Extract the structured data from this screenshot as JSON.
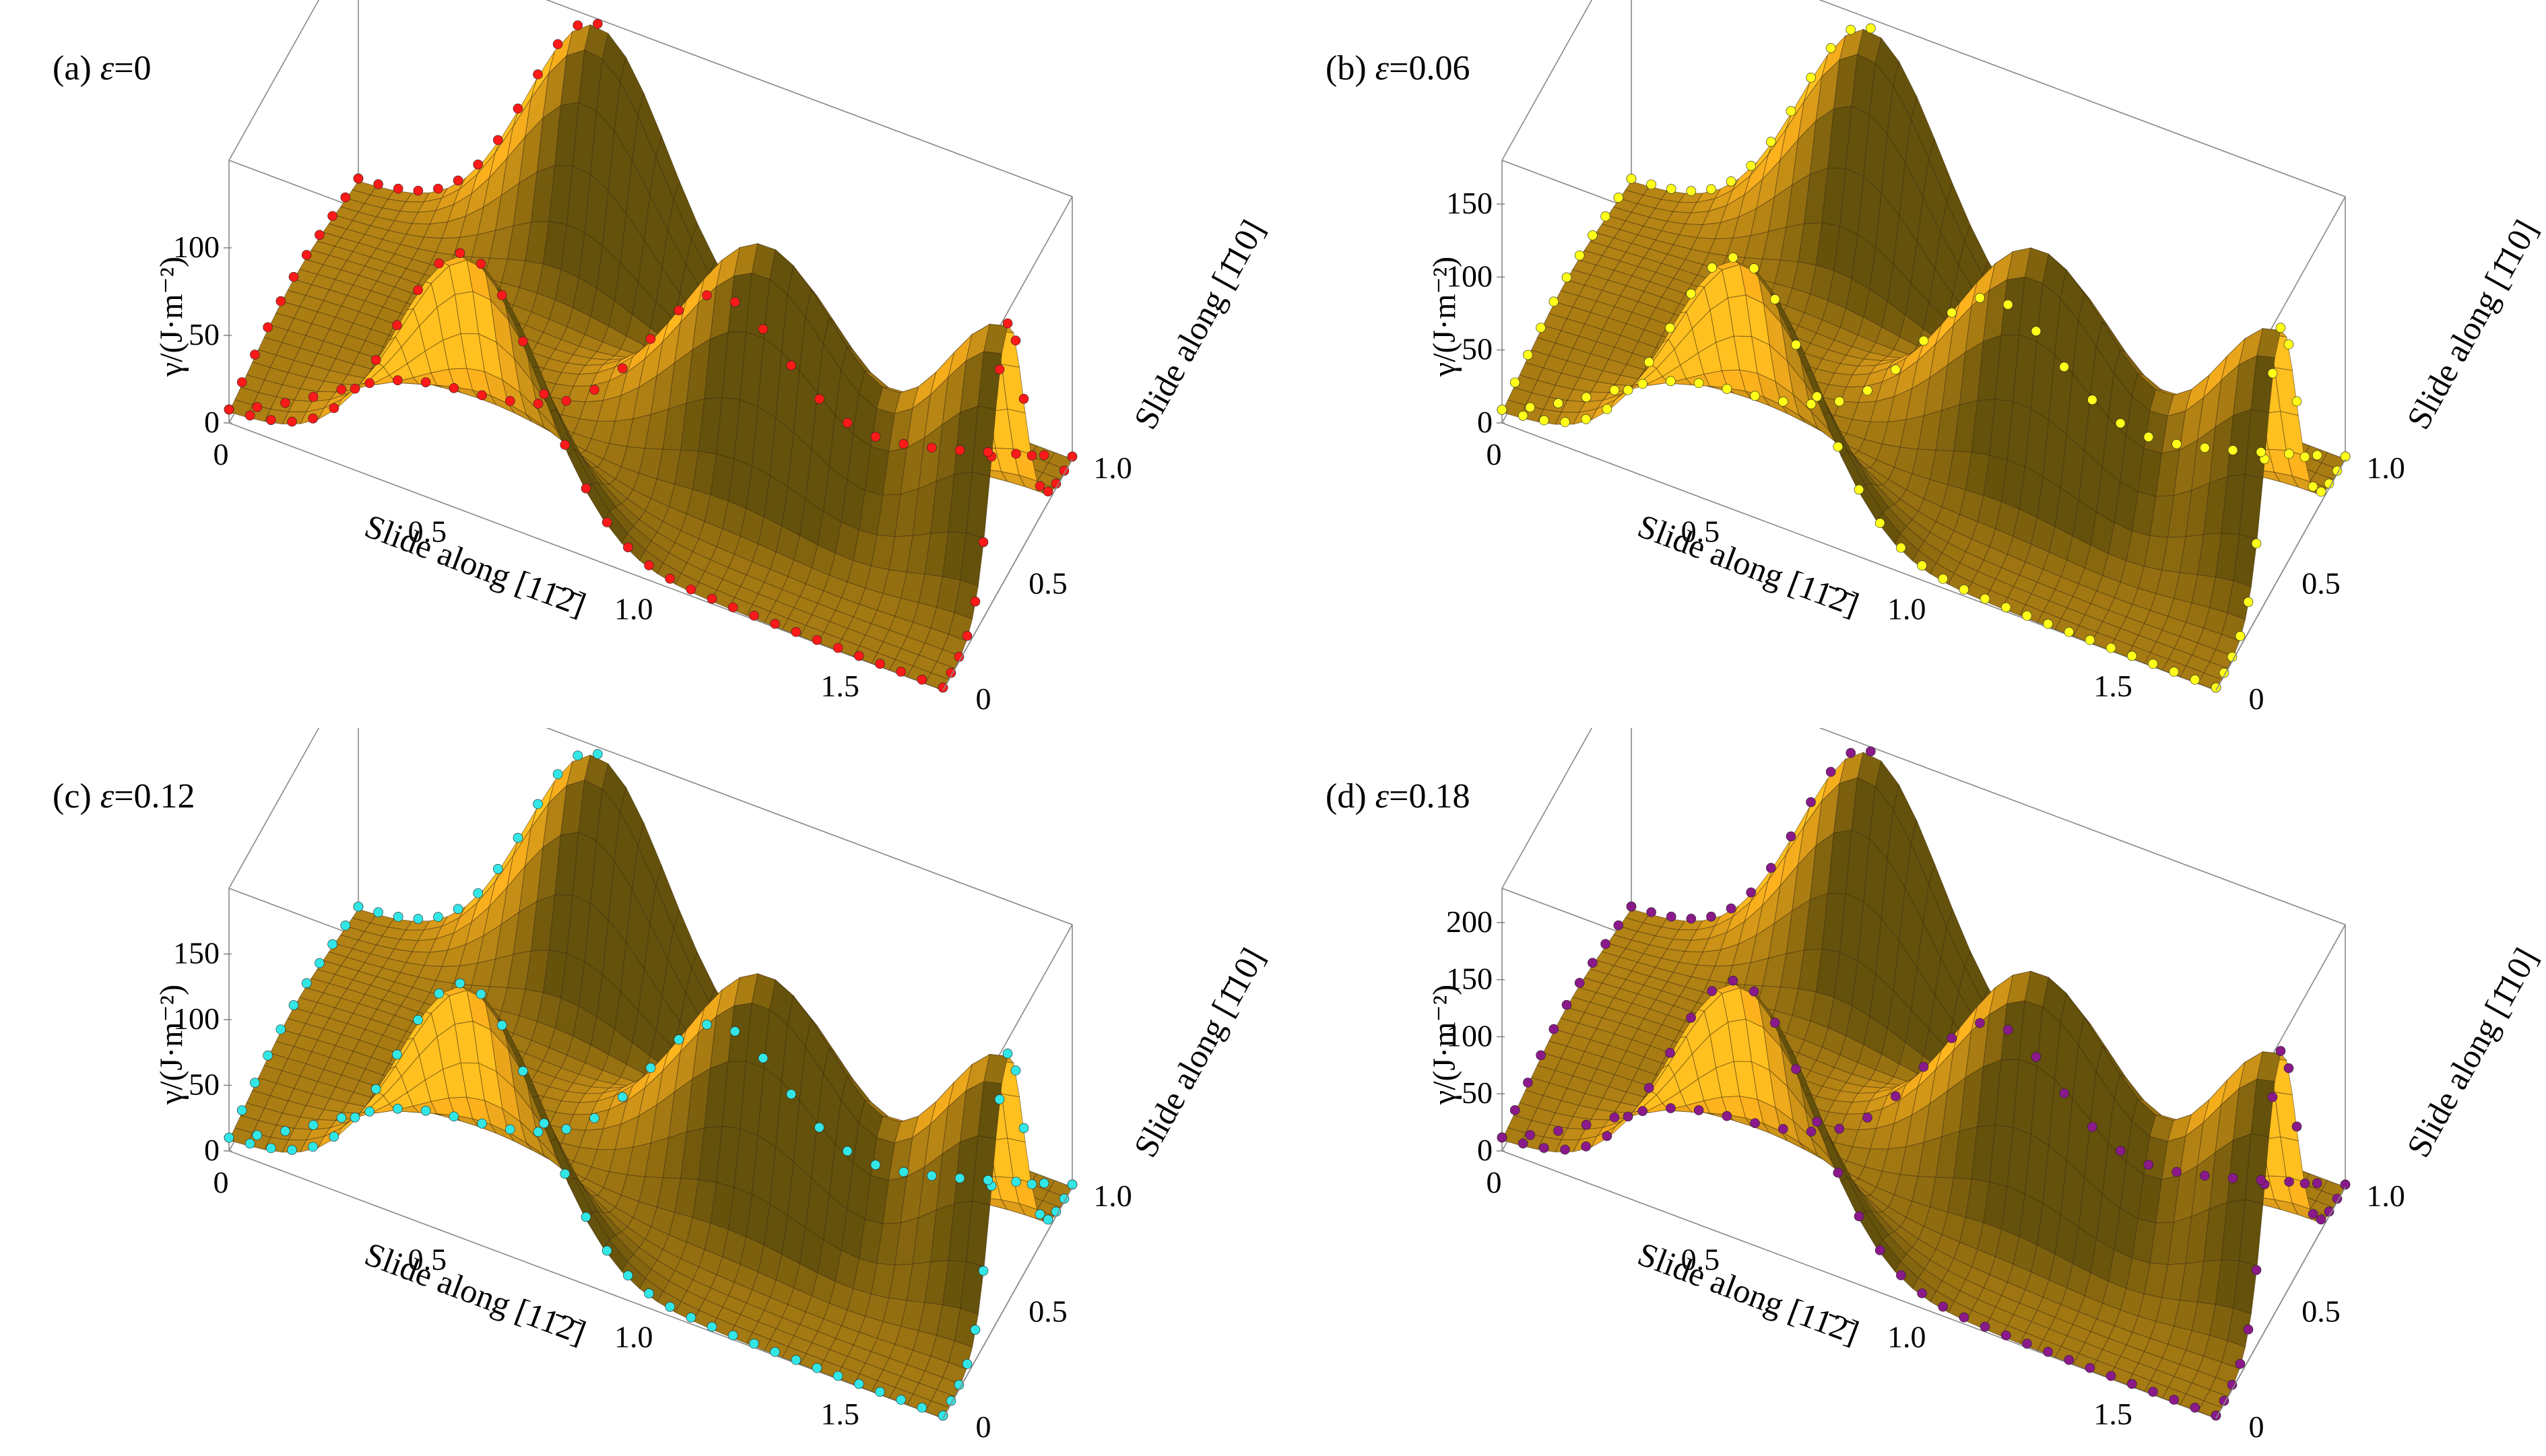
{
  "chart_data": [
    {
      "type": "surface3d",
      "panel": "(a)",
      "strain_symbol": "ε",
      "strain_value": "=0",
      "z_label": "γ/(J·m⁻²)",
      "x_label": "Slide along [11̄2̄]",
      "y_label": "Slide along [1̄10]",
      "x_ticks": [
        "0",
        "0.5",
        "1.0",
        "1.5"
      ],
      "y_ticks": [
        "0",
        "0.5",
        "1.0"
      ],
      "z_ticks": [
        "0",
        "50",
        "100"
      ],
      "xlim": [
        0,
        1.73
      ],
      "ylim": [
        0,
        1.0
      ],
      "zlim": [
        0,
        150
      ],
      "peak_value": 140,
      "marker_color": "#ff1a1a"
    },
    {
      "type": "surface3d",
      "panel": "(b)",
      "strain_symbol": "ε",
      "strain_value": "=0.06",
      "z_label": "γ/(J·m⁻²)",
      "x_label": "Slide along [11̄2̄]",
      "y_label": "Slide along [1̄10]",
      "x_ticks": [
        "0",
        "0.5",
        "1.0",
        "1.5"
      ],
      "y_ticks": [
        "0",
        "0.5",
        "1.0"
      ],
      "z_ticks": [
        "0",
        "50",
        "100",
        "150"
      ],
      "xlim": [
        0,
        1.73
      ],
      "ylim": [
        0,
        1.0
      ],
      "zlim": [
        0,
        180
      ],
      "peak_value": 165,
      "marker_color": "#ffff1a"
    },
    {
      "type": "surface3d",
      "panel": "(c)",
      "strain_symbol": "ε",
      "strain_value": "=0.12",
      "z_label": "γ/(J·m⁻²)",
      "x_label": "Slide along [11̄2̄]",
      "y_label": "Slide along [1̄10]",
      "x_ticks": [
        "0",
        "0.5",
        "1.0",
        "1.5"
      ],
      "y_ticks": [
        "0",
        "0.5",
        "1.0"
      ],
      "z_ticks": [
        "0",
        "50",
        "100",
        "150"
      ],
      "xlim": [
        0,
        1.73
      ],
      "ylim": [
        0,
        1.0
      ],
      "zlim": [
        0,
        200
      ],
      "peak_value": 185,
      "marker_color": "#33e6e6"
    },
    {
      "type": "surface3d",
      "panel": "(d)",
      "strain_symbol": "ε",
      "strain_value": "=0.18",
      "z_label": "γ/(J·m⁻²)",
      "x_label": "Slide along [11̄2̄]",
      "y_label": "Slide along [1̄10]",
      "x_ticks": [
        "0",
        "0.5",
        "1.0",
        "1.5"
      ],
      "y_ticks": [
        "0",
        "0.5",
        "1.0"
      ],
      "z_ticks": [
        "0",
        "50",
        "100",
        "150",
        "200"
      ],
      "xlim": [
        0,
        1.73
      ],
      "ylim": [
        0,
        1.0
      ],
      "zlim": [
        0,
        230
      ],
      "peak_value": 215,
      "marker_color": "#8a1a8a"
    }
  ]
}
